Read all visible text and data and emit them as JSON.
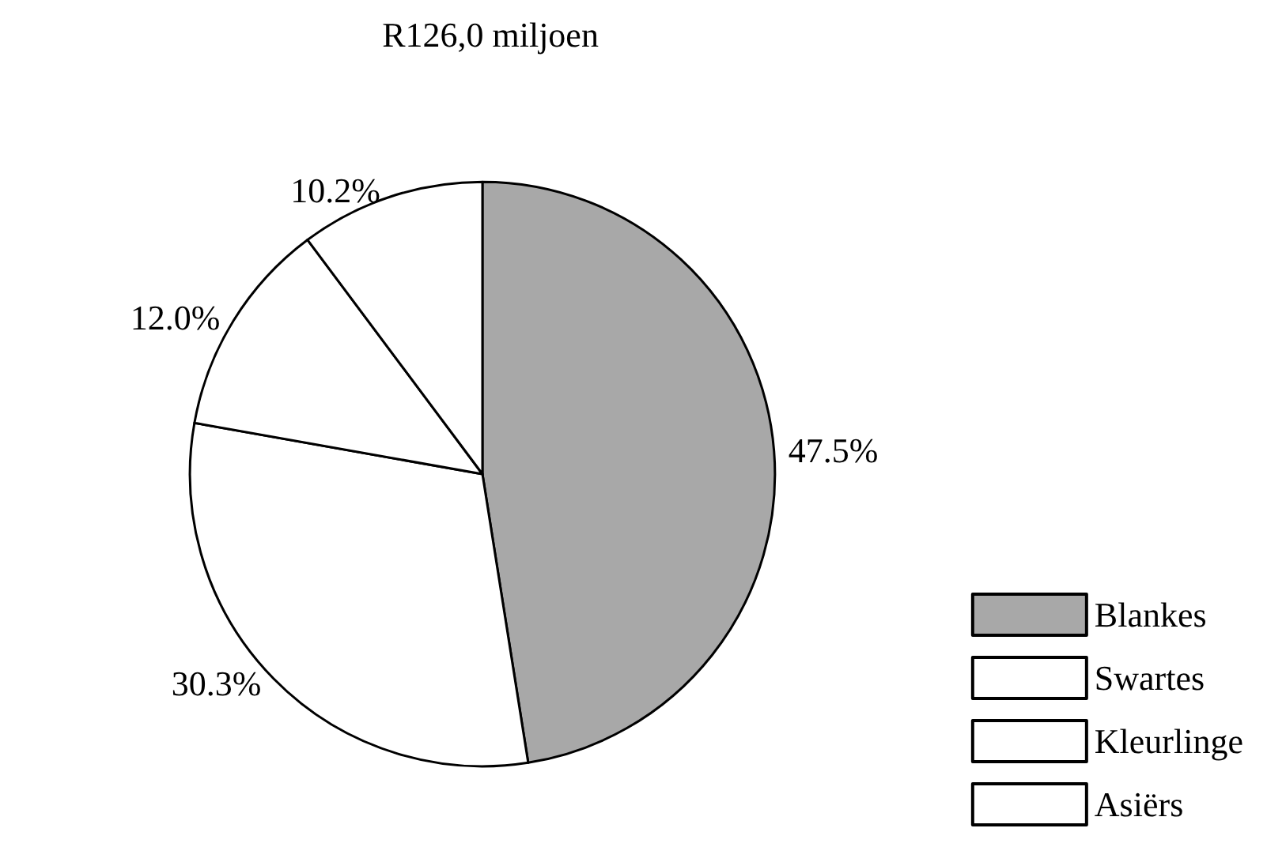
{
  "chart_data": {
    "type": "pie",
    "title": "R126,0 miljoen",
    "categories": [
      "Blankes",
      "Swartes",
      "Kleurlinge",
      "Asiërs"
    ],
    "values": [
      47.5,
      30.3,
      12.0,
      10.2
    ],
    "value_labels": [
      "47.5%",
      "30.3%",
      "12.0%",
      "10.2%"
    ],
    "colors": [
      "#a8a8a8",
      "#ffffff",
      "#ffffff",
      "#ffffff"
    ],
    "legend": "bottom right"
  }
}
